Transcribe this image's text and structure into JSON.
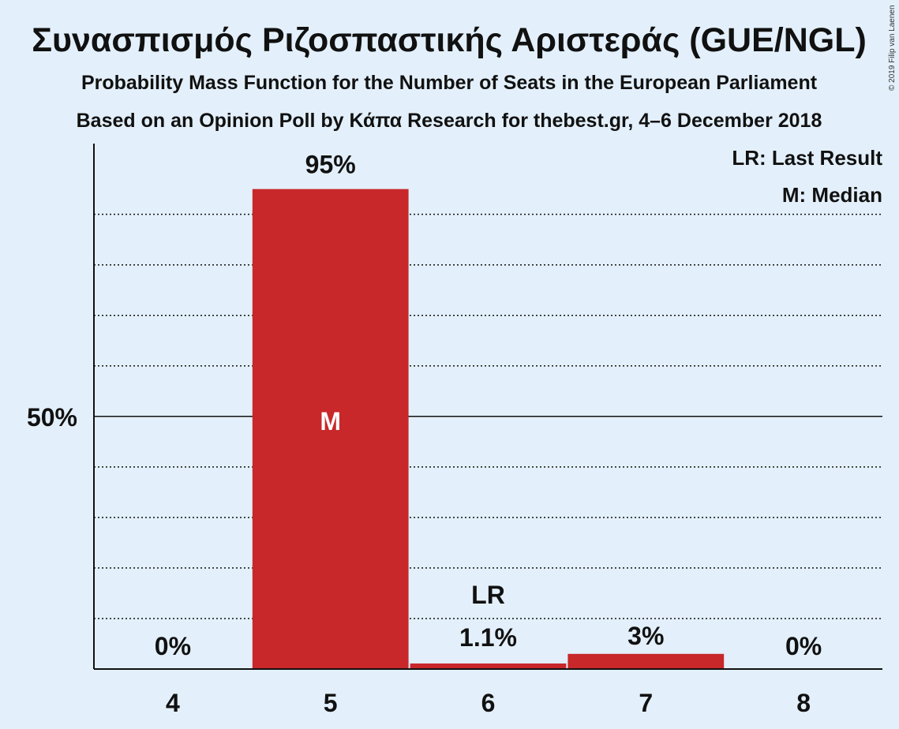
{
  "chart_data": {
    "type": "bar",
    "title": "Συνασπισμός Ριζοσπαστικής Αριστεράς (GUE/NGL)",
    "subtitle": "Probability Mass Function for the Number of Seats in the European Parliament",
    "subtitle2": "Based on an Opinion Poll by Κάπα Research for thebest.gr, 4–6 December 2018",
    "copyright": "© 2019 Filip van Laenen",
    "categories": [
      "4",
      "5",
      "6",
      "7",
      "8"
    ],
    "values": [
      0,
      95,
      1.1,
      3,
      0
    ],
    "value_labels": [
      "0%",
      "95%",
      "1.1%",
      "3%",
      "0%"
    ],
    "bar_color": "#c8282a",
    "ylim": [
      0,
      104
    ],
    "ytick_labels": [
      {
        "value": 50,
        "label": "50%"
      }
    ],
    "gridlines": [
      10,
      20,
      30,
      40,
      60,
      70,
      80,
      90
    ],
    "median_category": "5",
    "median_marker": "M",
    "last_result_category": "6",
    "last_result_marker": "LR",
    "legend": [
      "LR: Last Result",
      "M: Median"
    ],
    "legend_position": "top-right"
  }
}
